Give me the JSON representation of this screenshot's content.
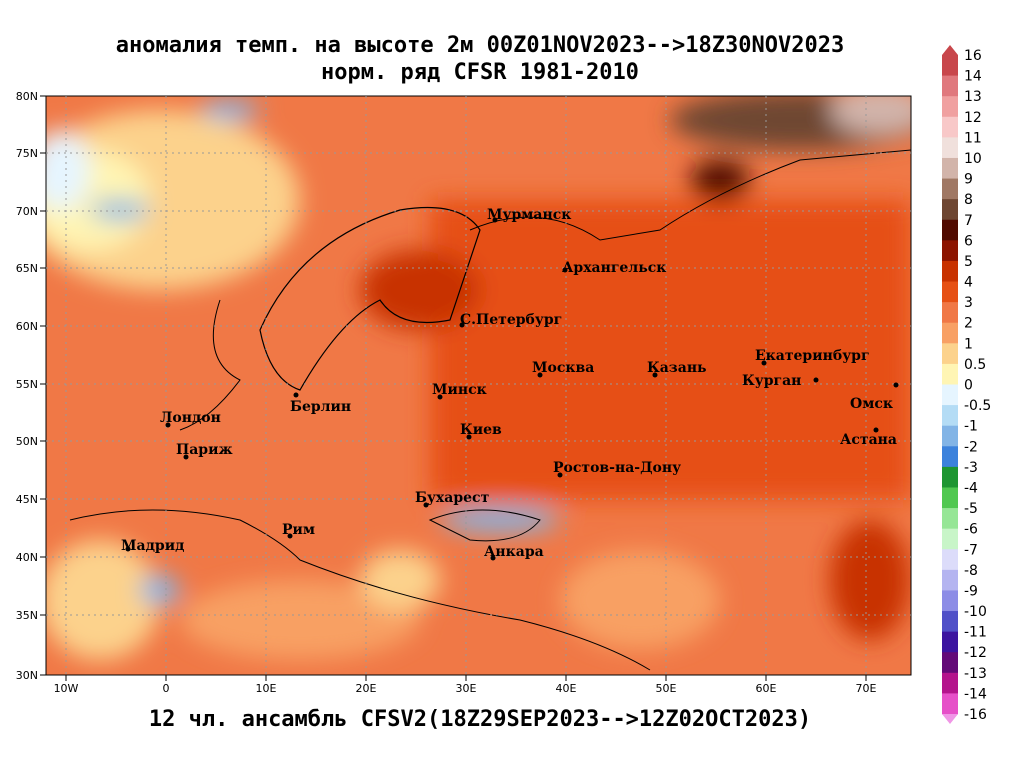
{
  "header": {
    "title_lines": [
      "аномалия темп. на высоте 2м 00Z01NOV2023-->18Z30NOV2023",
      "норм. ряд CFSR 1981-2010"
    ],
    "caption": "12 чл. ансамбль CFSV2(18Z29SEP2023-->12Z02OCT2023)"
  },
  "map": {
    "lat_labels": [
      "80N",
      "75N",
      "70N",
      "65N",
      "60N",
      "55N",
      "50N",
      "45N",
      "40N",
      "35N",
      "30N"
    ],
    "lon_labels": [
      "10W",
      "0",
      "10E",
      "20E",
      "30E",
      "40E",
      "50E",
      "60E",
      "70E"
    ],
    "cities": [
      "Мурманск",
      "Архангельск",
      "С.Петербург",
      "Москва",
      "Казань",
      "Екатеринбург",
      "Курган",
      "Омск",
      "Астана",
      "Минск",
      "Киев",
      "Берлин",
      "Лондон",
      "Париж",
      "Ростов-на-Дону",
      "Бухарест",
      "Рим",
      "Анкара",
      "Мадрид"
    ]
  },
  "colorbar": {
    "labels": [
      16,
      14,
      13,
      12,
      11,
      10,
      9,
      8,
      7,
      6,
      5,
      4,
      3,
      2,
      1,
      0.5,
      0,
      -0.5,
      -1,
      -2,
      -3,
      -4,
      -5,
      -6,
      -7,
      -8,
      -9,
      -10,
      -11,
      -12,
      -13,
      -14,
      -16
    ],
    "colors": [
      "#c8464b",
      "#e0787d",
      "#f0a0a0",
      "#f8c8c8",
      "#f0e0dc",
      "#d2b4aa",
      "#a07864",
      "#6e4632",
      "#500a00",
      "#8c1400",
      "#c83200",
      "#e65014",
      "#f07846",
      "#f8a064",
      "#fcd28c",
      "#fff5b4",
      "#e6f5ff",
      "#b4dcf5",
      "#82b4e6",
      "#3c82dc",
      "#1e9632",
      "#50c850",
      "#96e696",
      "#c8f5c8",
      "#dcdcfa",
      "#b4b4f0",
      "#8c8ce6",
      "#5050c8",
      "#3c14a0",
      "#640a78",
      "#b4148c",
      "#e650c8"
    ]
  }
}
